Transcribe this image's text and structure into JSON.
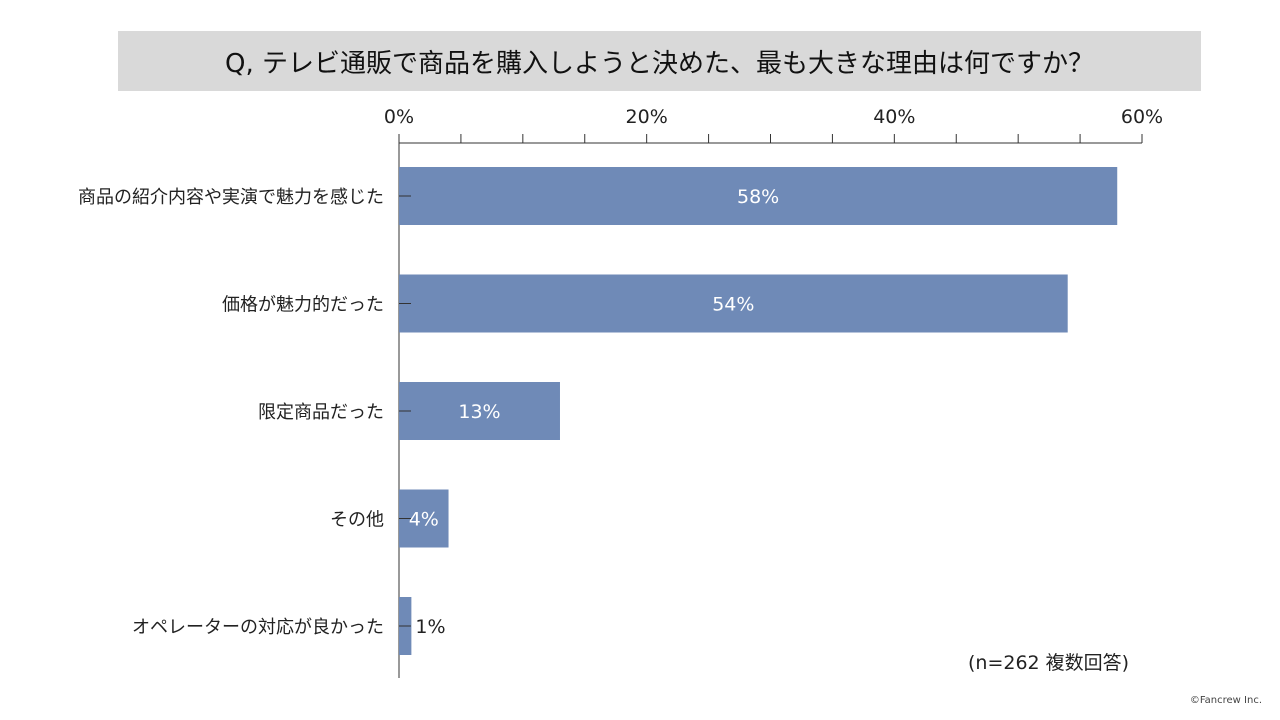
{
  "title": "Q, テレビ通販で商品を購入しようと決めた、最も大きな理由は何ですか？",
  "note": "(n=262 複数回答)",
  "copyright": "©Fancrew Inc.",
  "colors": {
    "bar": "#6f8ab7",
    "axis": "#333333",
    "title_band": "#d9d9d9"
  },
  "chart_data": {
    "type": "bar",
    "orientation": "horizontal",
    "categories": [
      "商品の紹介内容や実演で魅力を感じた",
      "価格が魅力的だった",
      "限定商品だった",
      "その他",
      "オペレーターの対応が良かった"
    ],
    "values": [
      58,
      54,
      13,
      4,
      1
    ],
    "data_labels": [
      "58%",
      "54%",
      "13%",
      "4%",
      "1%"
    ],
    "xlim": [
      0,
      60
    ],
    "ticks": [
      0,
      20,
      40,
      60
    ],
    "tick_labels": [
      "0%",
      "20%",
      "40%",
      "60%"
    ],
    "minor_tick_step": 5,
    "grid": false,
    "xlabel": "",
    "ylabel": ""
  }
}
